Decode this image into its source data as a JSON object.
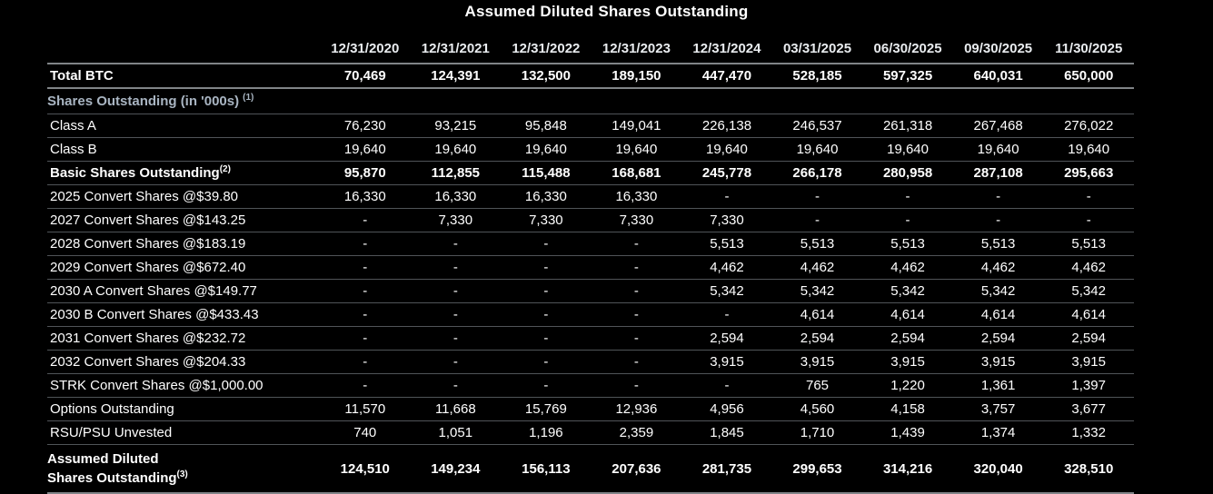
{
  "title": "Assumed Diluted Shares Outstanding",
  "colors": {
    "background": "#000000",
    "title-text": "#ffffff",
    "header-text": "#e9ecef",
    "row-text": "#ffffff",
    "section-text": "#a9b5c2",
    "rule": "#505458",
    "rule-strong": "#808487"
  },
  "chart_data": {
    "type": "table",
    "title": "Assumed Diluted Shares Outstanding",
    "units_note": "values in '000s where indicated",
    "columns": [
      "12/31/2020",
      "12/31/2021",
      "12/31/2022",
      "12/31/2023",
      "12/31/2024",
      "03/31/2025",
      "06/30/2025",
      "09/30/2025",
      "11/30/2025"
    ],
    "rows": [
      {
        "label": "Total BTC",
        "emphasis": "bold",
        "major_rule": true,
        "values": [
          "70,469",
          "124,391",
          "132,500",
          "189,150",
          "447,470",
          "528,185",
          "597,325",
          "640,031",
          "650,000"
        ]
      },
      {
        "label": "Shares Outstanding (in '000s)",
        "superscript": "(1)",
        "sup_gap": true,
        "emphasis": "section",
        "values": [
          "",
          "",
          "",
          "",
          "",
          "",
          "",
          "",
          ""
        ]
      },
      {
        "label": "Class A",
        "values": [
          "76,230",
          "93,215",
          "95,848",
          "149,041",
          "226,138",
          "246,537",
          "261,318",
          "267,468",
          "276,022"
        ]
      },
      {
        "label": "Class B",
        "values": [
          "19,640",
          "19,640",
          "19,640",
          "19,640",
          "19,640",
          "19,640",
          "19,640",
          "19,640",
          "19,640"
        ]
      },
      {
        "label": "Basic Shares Outstanding",
        "superscript": "(2)",
        "emphasis": "bold",
        "values": [
          "95,870",
          "112,855",
          "115,488",
          "168,681",
          "245,778",
          "266,178",
          "280,958",
          "287,108",
          "295,663"
        ]
      },
      {
        "label": "2025 Convert Shares @$39.80",
        "values": [
          "16,330",
          "16,330",
          "16,330",
          "16,330",
          "-",
          "-",
          "-",
          "-",
          "-"
        ]
      },
      {
        "label": "2027 Convert Shares @$143.25",
        "values": [
          "-",
          "7,330",
          "7,330",
          "7,330",
          "7,330",
          "-",
          "-",
          "-",
          "-"
        ]
      },
      {
        "label": "2028 Convert Shares @$183.19",
        "values": [
          "-",
          "-",
          "-",
          "-",
          "5,513",
          "5,513",
          "5,513",
          "5,513",
          "5,513"
        ]
      },
      {
        "label": "2029 Convert Shares @$672.40",
        "values": [
          "-",
          "-",
          "-",
          "-",
          "4,462",
          "4,462",
          "4,462",
          "4,462",
          "4,462"
        ]
      },
      {
        "label": "2030 A Convert Shares @$149.77",
        "values": [
          "-",
          "-",
          "-",
          "-",
          "5,342",
          "5,342",
          "5,342",
          "5,342",
          "5,342"
        ]
      },
      {
        "label": "2030 B Convert Shares @$433.43",
        "values": [
          "-",
          "-",
          "-",
          "-",
          "-",
          "4,614",
          "4,614",
          "4,614",
          "4,614"
        ]
      },
      {
        "label": "2031 Convert Shares @$232.72",
        "values": [
          "-",
          "-",
          "-",
          "-",
          "2,594",
          "2,594",
          "2,594",
          "2,594",
          "2,594"
        ]
      },
      {
        "label": "2032 Convert Shares @$204.33",
        "values": [
          "-",
          "-",
          "-",
          "-",
          "3,915",
          "3,915",
          "3,915",
          "3,915",
          "3,915"
        ]
      },
      {
        "label": "STRK Convert Shares @$1,000.00",
        "values": [
          "-",
          "-",
          "-",
          "-",
          "-",
          "765",
          "1,220",
          "1,361",
          "1,397"
        ]
      },
      {
        "label": "Options Outstanding",
        "values": [
          "11,570",
          "11,668",
          "15,769",
          "12,936",
          "4,956",
          "4,560",
          "4,158",
          "3,757",
          "3,677"
        ]
      },
      {
        "label": "RSU/PSU Unvested",
        "values": [
          "740",
          "1,051",
          "1,196",
          "2,359",
          "1,845",
          "1,710",
          "1,439",
          "1,374",
          "1,332"
        ]
      },
      {
        "label": "Assumed Diluted",
        "label_line2": "Shares Outstanding",
        "superscript": "(3)",
        "emphasis": "bold final",
        "major_rule": true,
        "values": [
          "124,510",
          "149,234",
          "156,113",
          "207,636",
          "281,735",
          "299,653",
          "314,216",
          "320,040",
          "328,510"
        ]
      }
    ]
  }
}
